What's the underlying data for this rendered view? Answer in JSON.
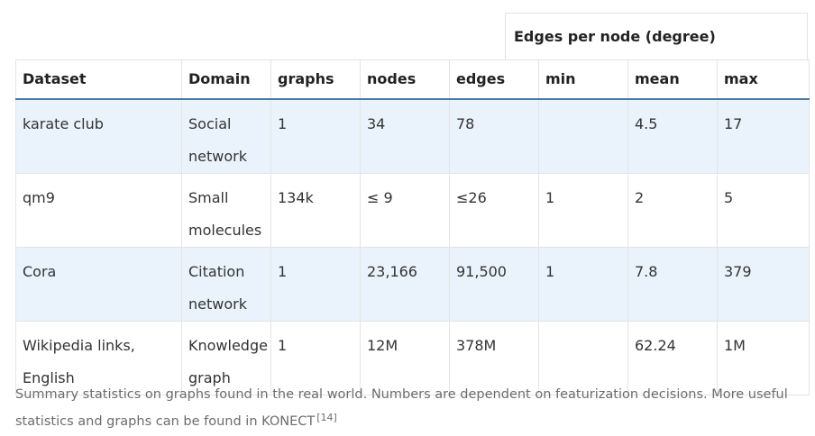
{
  "table": {
    "group_header": "Edges per node (degree)",
    "columns": [
      "Dataset",
      "Domain",
      "graphs",
      "nodes",
      "edges",
      "min",
      "mean",
      "max"
    ],
    "rows": [
      {
        "dataset": "karate club",
        "domain": "Social network",
        "graphs": "1",
        "nodes": "34",
        "edges": "78",
        "min": "",
        "mean": "4.5",
        "max": "17"
      },
      {
        "dataset": "qm9",
        "domain": "Small molecules",
        "graphs": "134k",
        "nodes": "≤ 9",
        "edges": "≤26",
        "min": "1",
        "mean": "2",
        "max": "5"
      },
      {
        "dataset": "Cora",
        "domain": "Citation network",
        "graphs": "1",
        "nodes": "23,166",
        "edges": "91,500",
        "min": "1",
        "mean": "7.8",
        "max": "379"
      },
      {
        "dataset": "Wikipedia links, English",
        "domain": "Knowledge graph",
        "graphs": "1",
        "nodes": "12M",
        "edges": "378M",
        "min": "",
        "mean": "62.24",
        "max": "1M"
      }
    ]
  },
  "caption": {
    "text": "Summary statistics on graphs found in the real world. Numbers are dependent on featurization decisions. More useful statistics and graphs can be found in KONECT",
    "reference": "[14]"
  },
  "colors": {
    "shaded_row": "#eaf3fc",
    "header_rule": "#4a7aa8",
    "border": "#e4e4e4",
    "caption_text": "#6c6c6c"
  }
}
